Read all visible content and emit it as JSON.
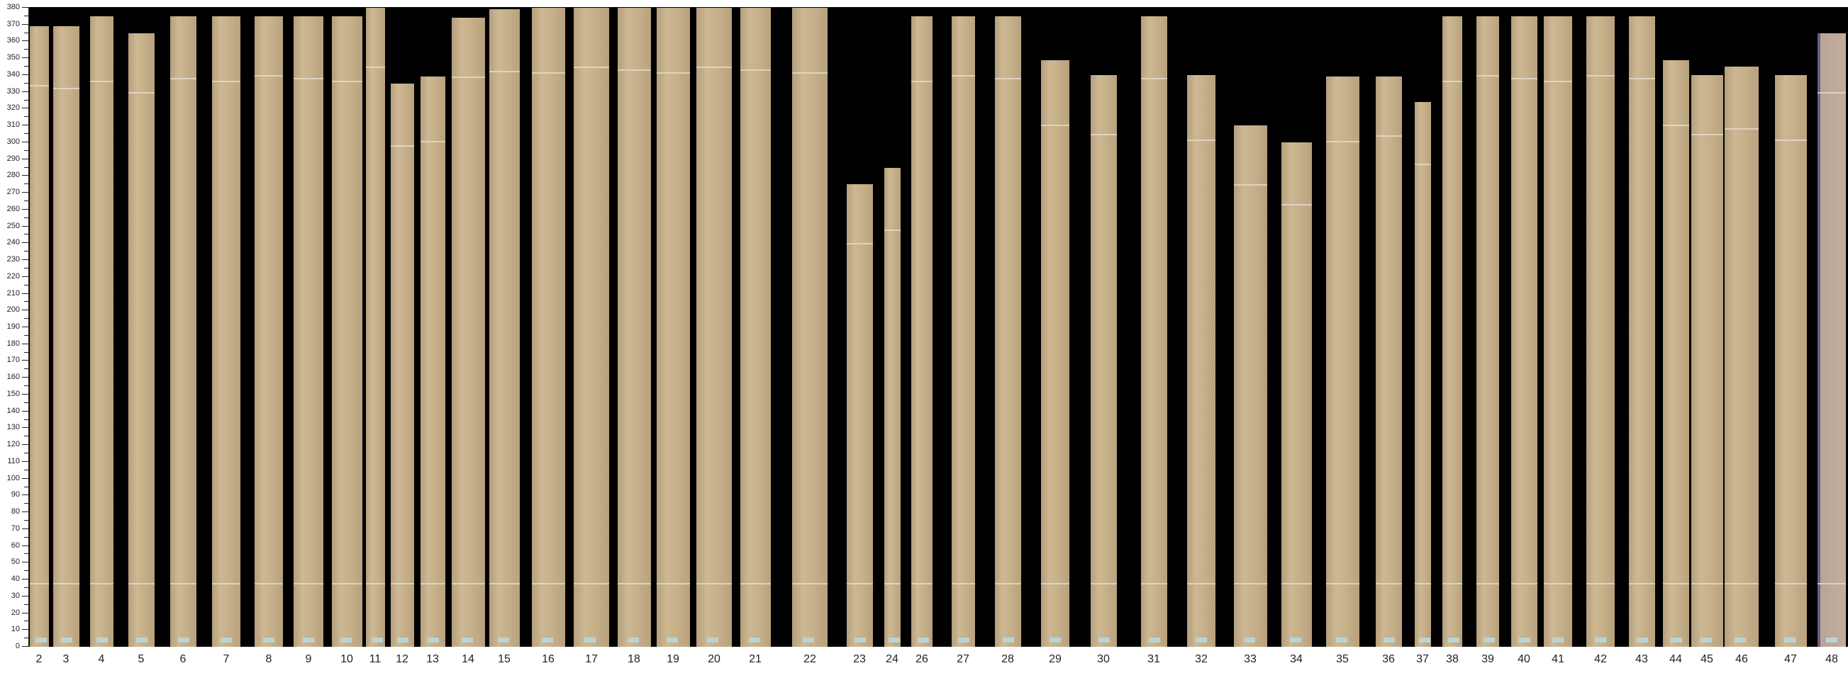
{
  "ruler": {
    "unit_ticks": [
      0,
      10,
      20,
      30,
      40,
      50,
      60,
      70,
      80,
      90,
      100,
      110,
      120,
      130,
      140,
      150,
      160,
      170,
      180,
      190,
      200,
      210,
      220,
      230,
      240,
      250,
      260,
      270,
      280,
      290,
      300,
      310,
      320,
      330,
      340,
      350,
      360,
      370,
      380
    ],
    "range": [
      0,
      380
    ]
  },
  "colors": {
    "background": "#000000",
    "veneer": "#c6b08a",
    "last_strip": "#b8a498"
  },
  "strips": [
    {
      "label": "2",
      "length": 369
    },
    {
      "label": "3",
      "length": 369
    },
    {
      "label": "4",
      "length": 375
    },
    {
      "label": "5",
      "length": 365
    },
    {
      "label": "6",
      "length": 375
    },
    {
      "label": "7",
      "length": 375
    },
    {
      "label": "8",
      "length": 375
    },
    {
      "label": "9",
      "length": 375
    },
    {
      "label": "10",
      "length": 375
    },
    {
      "label": "11",
      "length": 380
    },
    {
      "label": "12",
      "length": 335
    },
    {
      "label": "13",
      "length": 339
    },
    {
      "label": "14",
      "length": 374
    },
    {
      "label": "15",
      "length": 379
    },
    {
      "label": "16",
      "length": 380
    },
    {
      "label": "17",
      "length": 380
    },
    {
      "label": "18",
      "length": 380
    },
    {
      "label": "19",
      "length": 380
    },
    {
      "label": "20",
      "length": 380
    },
    {
      "label": "21",
      "length": 380
    },
    {
      "label": "22",
      "length": 380
    },
    {
      "label": "23",
      "length": 275
    },
    {
      "label": "24",
      "length": 285
    },
    {
      "label": "26",
      "length": 375
    },
    {
      "label": "27",
      "length": 375
    },
    {
      "label": "28",
      "length": 375
    },
    {
      "label": "29",
      "length": 349
    },
    {
      "label": "30",
      "length": 340
    },
    {
      "label": "31",
      "length": 375
    },
    {
      "label": "32",
      "length": 340
    },
    {
      "label": "33",
      "length": 310
    },
    {
      "label": "34",
      "length": 300
    },
    {
      "label": "35",
      "length": 339
    },
    {
      "label": "36",
      "length": 339
    },
    {
      "label": "37",
      "length": 324
    },
    {
      "label": "38",
      "length": 375
    },
    {
      "label": "39",
      "length": 375
    },
    {
      "label": "40",
      "length": 375
    },
    {
      "label": "41",
      "length": 375
    },
    {
      "label": "42",
      "length": 375
    },
    {
      "label": "43",
      "length": 375
    },
    {
      "label": "44",
      "length": 349
    },
    {
      "label": "45",
      "length": 340
    },
    {
      "label": "46",
      "length": 345
    },
    {
      "label": "47",
      "length": 340
    },
    {
      "label": "48",
      "length": 365
    }
  ]
}
